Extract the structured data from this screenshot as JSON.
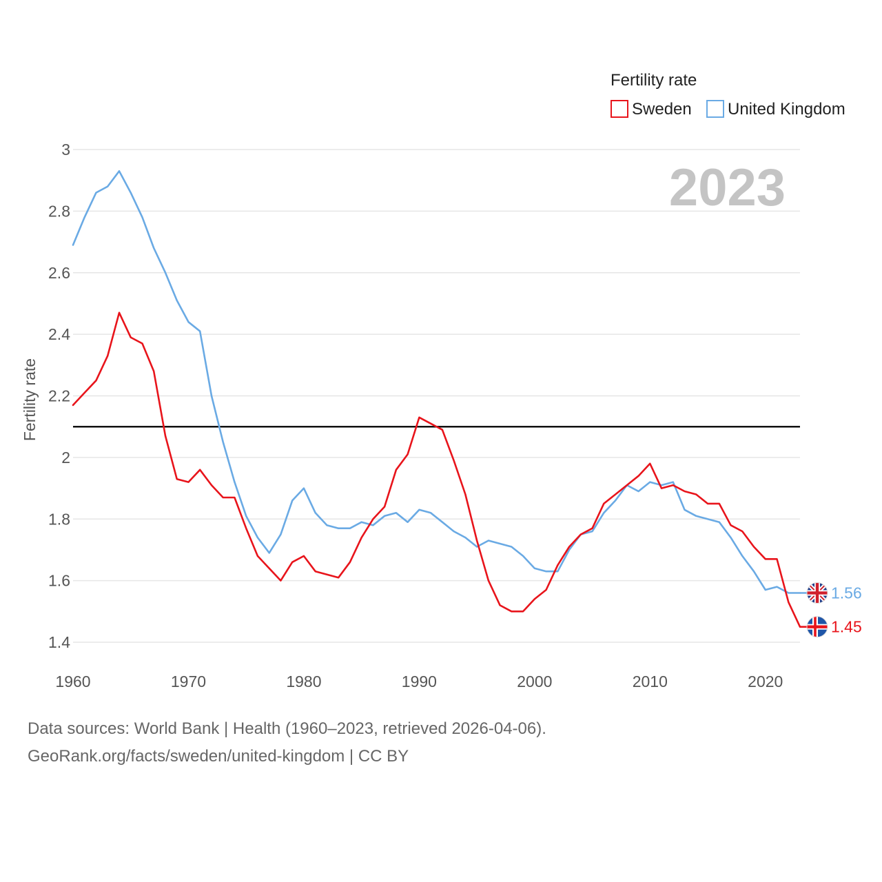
{
  "chart_data": {
    "type": "line",
    "title": "",
    "xlabel": "",
    "ylabel": "Fertility rate",
    "legend_title": "Fertility rate",
    "legend_position": "top-right",
    "year_label": "2023",
    "reference_line": 2.1,
    "xlim": [
      1960,
      2023
    ],
    "ylim": [
      1.4,
      3.0
    ],
    "x_ticks": [
      1960,
      1970,
      1980,
      1990,
      2000,
      2010,
      2020
    ],
    "y_ticks": [
      1.4,
      1.6,
      1.8,
      2.0,
      2.2,
      2.4,
      2.6,
      2.8,
      3.0
    ],
    "y_tick_labels": [
      "1.4",
      "1.6",
      "1.8",
      "2",
      "2.2",
      "2.4",
      "2.6",
      "2.8",
      "3"
    ],
    "x_start": 1960,
    "series": [
      {
        "name": "Sweden",
        "color": "#e8141b",
        "end_label": "1.45",
        "flag": "sweden-flag-icon",
        "values": [
          2.17,
          2.21,
          2.25,
          2.33,
          2.47,
          2.39,
          2.37,
          2.28,
          2.07,
          1.93,
          1.92,
          1.96,
          1.91,
          1.87,
          1.87,
          1.77,
          1.68,
          1.64,
          1.6,
          1.66,
          1.68,
          1.63,
          1.62,
          1.61,
          1.66,
          1.74,
          1.8,
          1.84,
          1.96,
          2.01,
          2.13,
          2.11,
          2.09,
          1.99,
          1.88,
          1.73,
          1.6,
          1.52,
          1.5,
          1.5,
          1.54,
          1.57,
          1.65,
          1.71,
          1.75,
          1.77,
          1.85,
          1.88,
          1.91,
          1.94,
          1.98,
          1.9,
          1.91,
          1.89,
          1.88,
          1.85,
          1.85,
          1.78,
          1.76,
          1.71,
          1.67,
          1.67,
          1.53,
          1.45
        ]
      },
      {
        "name": "United Kingdom",
        "color": "#6aaae4",
        "end_label": "1.56",
        "flag": "uk-flag-icon",
        "values": [
          2.69,
          2.78,
          2.86,
          2.88,
          2.93,
          2.86,
          2.78,
          2.68,
          2.6,
          2.51,
          2.44,
          2.41,
          2.2,
          2.05,
          1.92,
          1.81,
          1.74,
          1.69,
          1.75,
          1.86,
          1.9,
          1.82,
          1.78,
          1.77,
          1.77,
          1.79,
          1.78,
          1.81,
          1.82,
          1.79,
          1.83,
          1.82,
          1.79,
          1.76,
          1.74,
          1.71,
          1.73,
          1.72,
          1.71,
          1.68,
          1.64,
          1.63,
          1.63,
          1.7,
          1.75,
          1.76,
          1.82,
          1.86,
          1.91,
          1.89,
          1.92,
          1.91,
          1.92,
          1.83,
          1.81,
          1.8,
          1.79,
          1.74,
          1.68,
          1.63,
          1.57,
          1.58,
          1.56,
          1.56
        ]
      }
    ]
  },
  "footer": {
    "line1": "Data sources: World Bank | Health (1960–2023, retrieved 2026-04-06).",
    "line2": "GeoRank.org/facts/sweden/united-kingdom | CC BY"
  }
}
